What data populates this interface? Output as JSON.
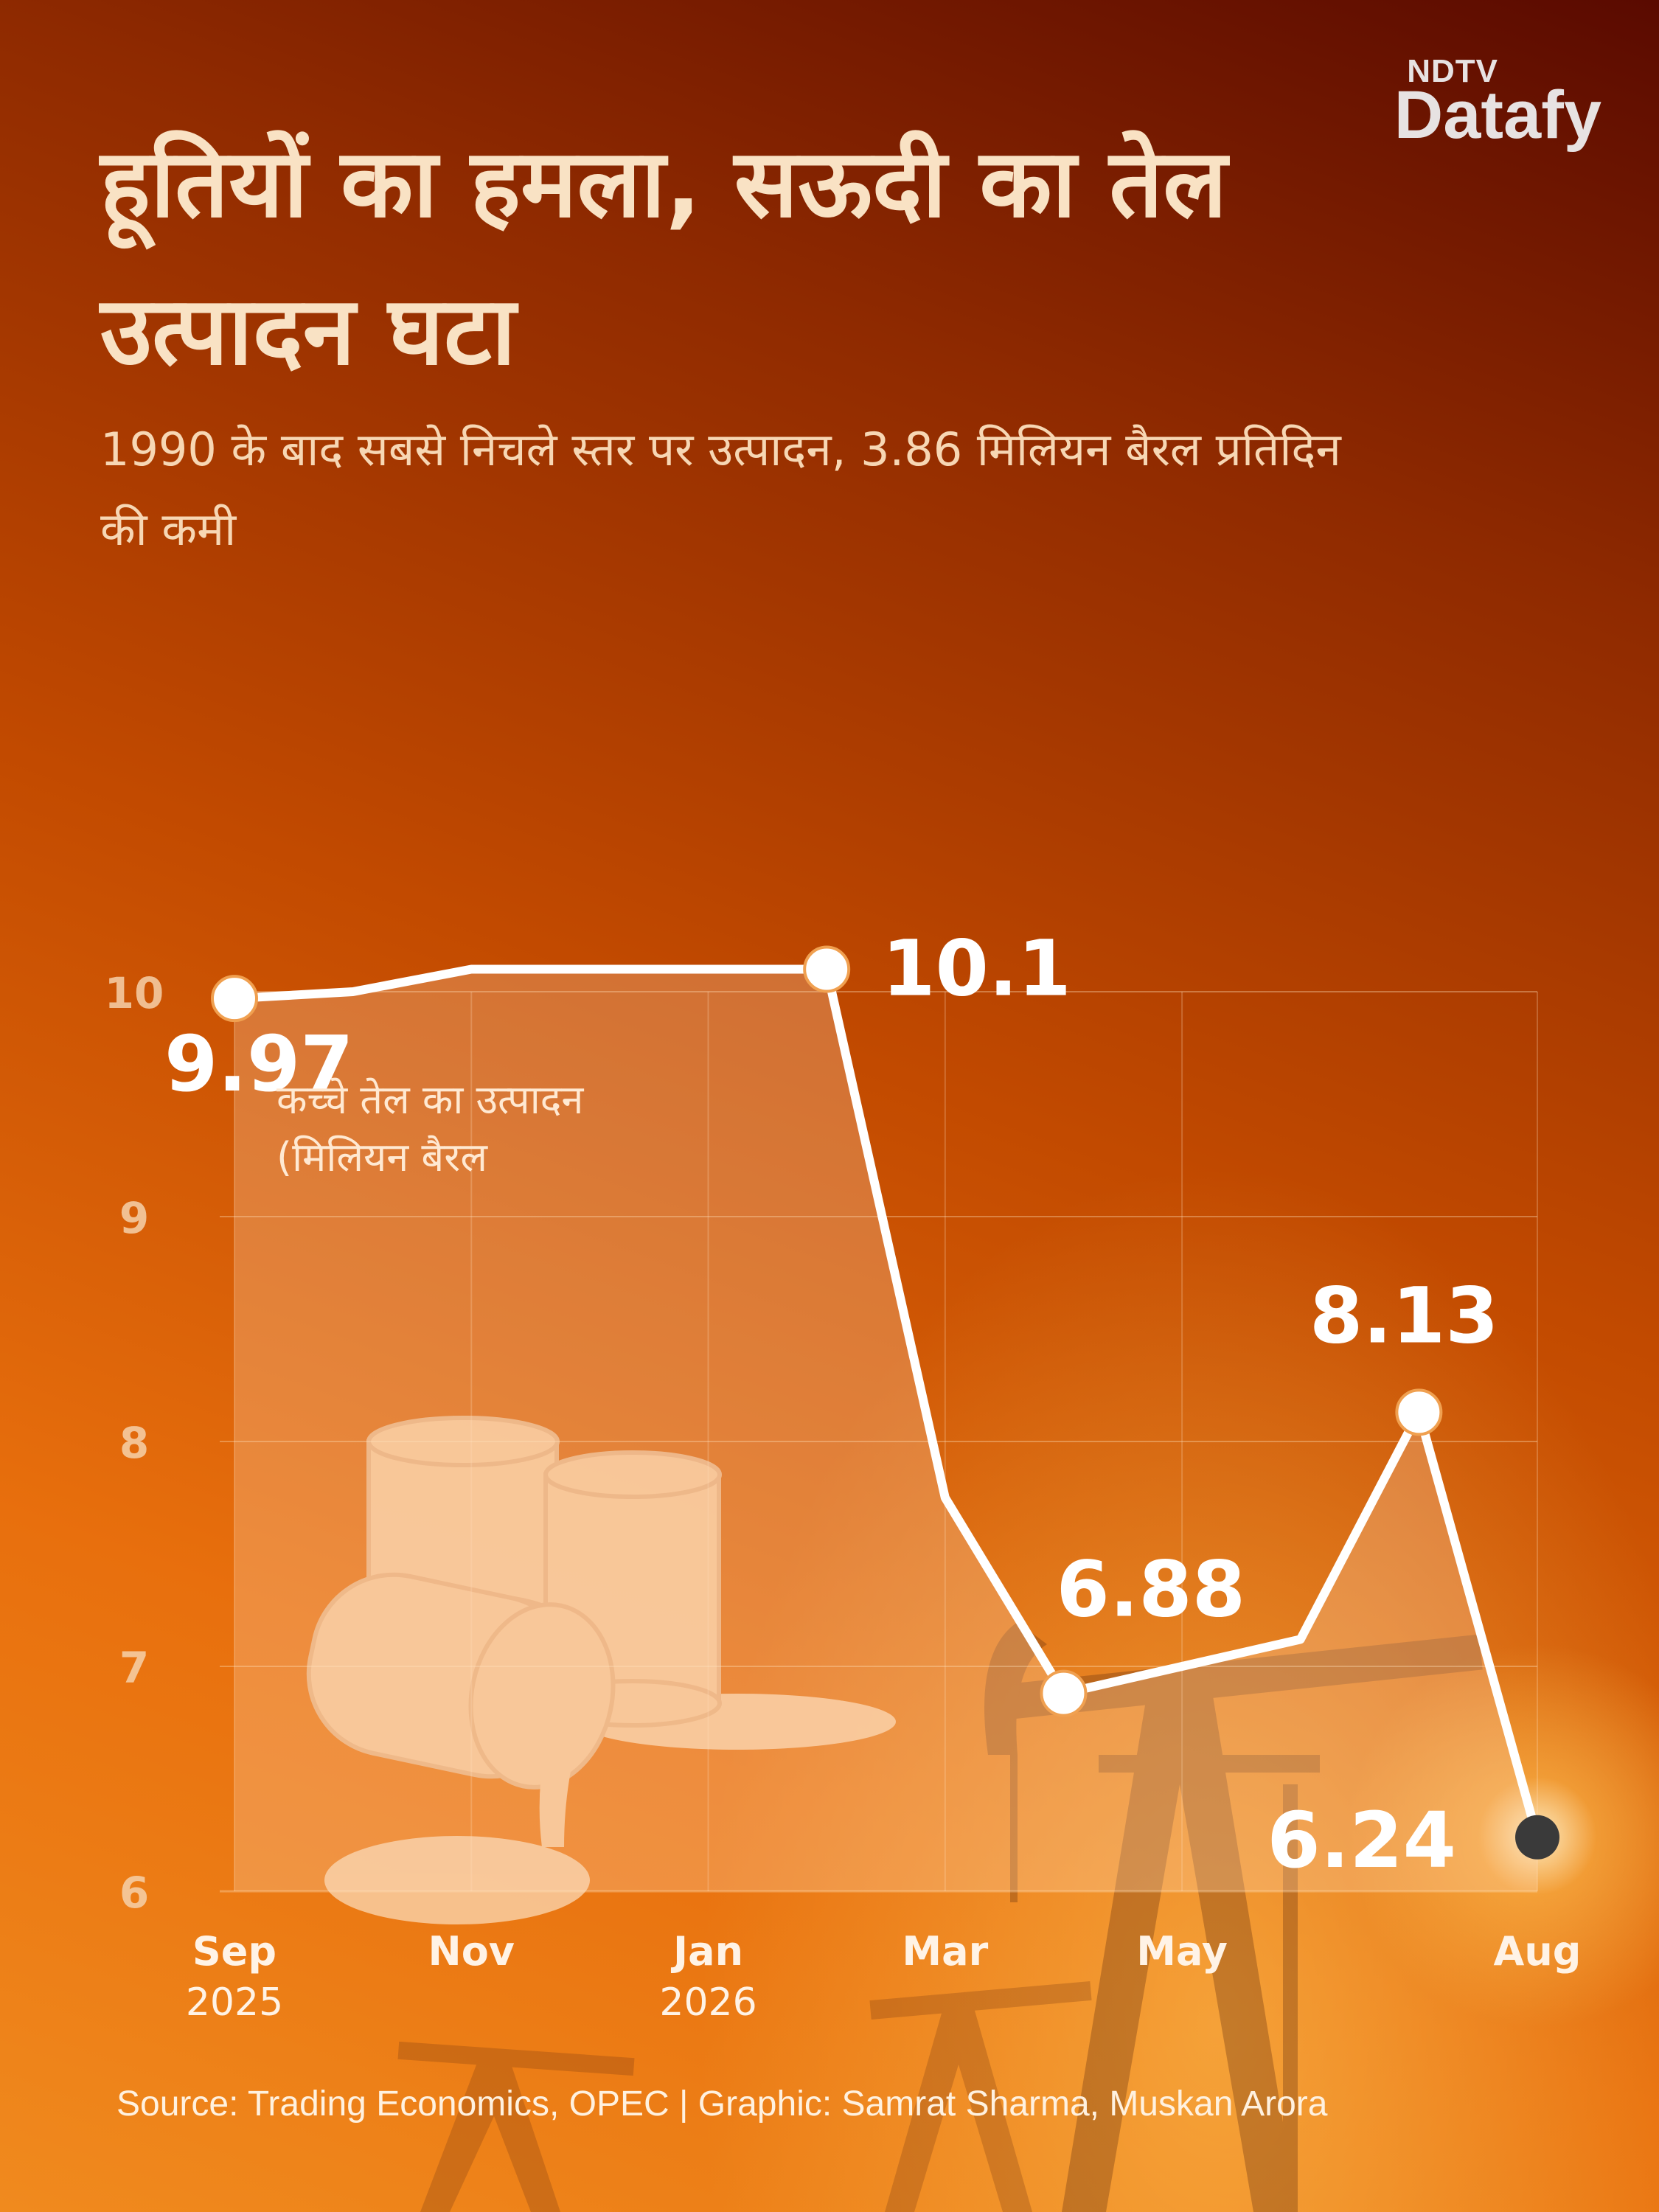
{
  "brand": {
    "top": "NDTV",
    "main": "Datafy"
  },
  "title": "हूतियों का हमला, सऊदी का तेल उत्पादन घटा",
  "subtitle": "1990 के बाद सबसे निचले स्तर पर उत्पादन,  3.86 मिलियन बैरल प्रतिदिन की कमी",
  "source": "Source: Trading Economics, OPEC | Graphic: Samrat Sharma, Muskan Arora",
  "colors": {
    "line": "#ffffff",
    "last_point": "#3a3a3a",
    "axis_text": "#f6d2ab",
    "title": "#f9e2c4"
  },
  "chart_data": {
    "type": "area",
    "series_label": [
      "कच्चे तेल का उत्पादन",
      "(मिलियन बैरल"
    ],
    "x_ticks": [
      {
        "month": "Sep",
        "year": "2025",
        "x": 0
      },
      {
        "month": "Nov",
        "year": "",
        "x": 2
      },
      {
        "month": "Jan",
        "year": "2026",
        "x": 4
      },
      {
        "month": "Mar",
        "year": "",
        "x": 6
      },
      {
        "month": "May",
        "year": "",
        "x": 8
      },
      {
        "month": "Aug",
        "year": "",
        "x": 11
      }
    ],
    "y_ticks": [
      6,
      7,
      8,
      9,
      10
    ],
    "ylim": [
      6,
      10.35
    ],
    "xlim": [
      0,
      11
    ],
    "points": [
      {
        "x": 0,
        "y": 9.97,
        "label": "9.97"
      },
      {
        "x": 1,
        "y": 10.0
      },
      {
        "x": 2,
        "y": 10.1
      },
      {
        "x": 3,
        "y": 10.1
      },
      {
        "x": 4,
        "y": 10.1
      },
      {
        "x": 5,
        "y": 10.1,
        "label": "10.1"
      },
      {
        "x": 6,
        "y": 7.75
      },
      {
        "x": 7,
        "y": 6.88,
        "label": "6.88"
      },
      {
        "x": 8,
        "y": 7.0
      },
      {
        "x": 9,
        "y": 7.12
      },
      {
        "x": 10,
        "y": 8.13,
        "label": "8.13"
      },
      {
        "x": 11,
        "y": 6.24,
        "label": "6.24"
      }
    ],
    "grid": true
  }
}
